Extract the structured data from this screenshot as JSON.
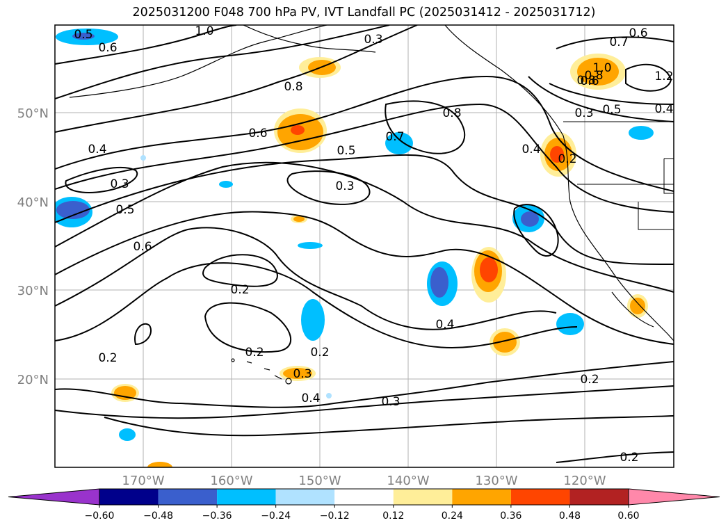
{
  "title": "2025031200 F048 700 hPa PV, IVT Landfall PC (2025031412 - 2025031712)",
  "lon_ticks": [
    "170°W",
    "160°W",
    "150°W",
    "140°W",
    "130°W",
    "120°W"
  ],
  "lat_ticks": [
    "50°N",
    "40°N",
    "30°N",
    "20°N"
  ],
  "colorbar": {
    "ticks": [
      "−0.60",
      "−0.48",
      "−0.36",
      "−0.24",
      "−0.12",
      "0.12",
      "0.24",
      "0.36",
      "0.48",
      "0.60"
    ],
    "colors": [
      "#9933cc",
      "#00008b",
      "#3a5fcd",
      "#00bfff",
      "#b0e2ff",
      "#ffffff",
      "#ffee99",
      "#ffa500",
      "#ff4500",
      "#b22222",
      "#ff88aa"
    ]
  },
  "contour_labels": [
    "0.5",
    "0.6",
    "1.0",
    "0.3",
    "0.8",
    "0.6",
    "0.7",
    "1.2",
    "0.8",
    "0.6",
    "0.5",
    "0.4",
    "0.3",
    "0.4",
    "0.6",
    "0.5",
    "0.8",
    "0.7",
    "0.4",
    "0.2",
    "0.3",
    "0.3",
    "0.5",
    "0.6",
    "0.2",
    "0.2",
    "0.2",
    "0.3",
    "0.4",
    "0.3",
    "0.4",
    "0.2",
    "0.2",
    "1.0",
    "0.2",
    "0.8"
  ]
}
